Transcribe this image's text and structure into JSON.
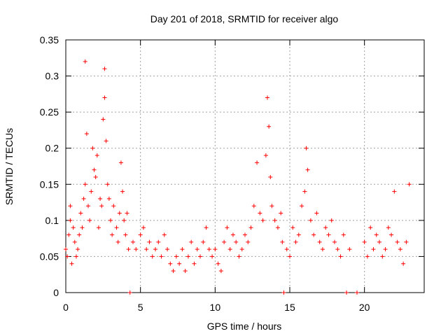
{
  "chart_data": {
    "type": "scatter",
    "title": "Day 201 of 2018, SRMTID for receiver algo",
    "xlabel": "GPS time / hours",
    "ylabel": "SRMTID / TECUs",
    "xlim": [
      0,
      24
    ],
    "ylim": [
      0,
      0.35
    ],
    "x_ticks": [
      0,
      5,
      10,
      15,
      20
    ],
    "x_tick_labels": [
      "0",
      "5",
      "10",
      "15",
      "20"
    ],
    "y_ticks": [
      0,
      0.05,
      0.1,
      0.15,
      0.2,
      0.25,
      0.3,
      0.35
    ],
    "y_tick_labels": [
      "0",
      "0.05",
      "0.1",
      "0.15",
      "0.2",
      "0.25",
      "0.3",
      "0.35"
    ],
    "grid": true,
    "marker": "plus",
    "colors": {
      "points": "#ff0000",
      "grid": "#a0a0a0",
      "axis": "#000000"
    },
    "series": [
      {
        "name": "SRMTID",
        "points": [
          [
            0.0,
            0.06
          ],
          [
            0.1,
            0.05
          ],
          [
            0.2,
            0.08
          ],
          [
            0.3,
            0.12
          ],
          [
            0.3,
            0.1
          ],
          [
            0.4,
            0.04
          ],
          [
            0.5,
            0.09
          ],
          [
            0.6,
            0.07
          ],
          [
            0.7,
            0.05
          ],
          [
            0.8,
            0.06
          ],
          [
            0.9,
            0.08
          ],
          [
            1.0,
            0.11
          ],
          [
            1.1,
            0.09
          ],
          [
            1.2,
            0.13
          ],
          [
            1.3,
            0.32
          ],
          [
            1.3,
            0.15
          ],
          [
            1.4,
            0.22
          ],
          [
            1.5,
            0.12
          ],
          [
            1.6,
            0.1
          ],
          [
            1.7,
            0.14
          ],
          [
            1.8,
            0.2
          ],
          [
            1.9,
            0.17
          ],
          [
            2.0,
            0.16
          ],
          [
            2.1,
            0.19
          ],
          [
            2.2,
            0.09
          ],
          [
            2.3,
            0.13
          ],
          [
            2.4,
            0.12
          ],
          [
            2.5,
            0.24
          ],
          [
            2.6,
            0.31
          ],
          [
            2.6,
            0.27
          ],
          [
            2.7,
            0.21
          ],
          [
            2.8,
            0.15
          ],
          [
            2.9,
            0.13
          ],
          [
            3.0,
            0.1
          ],
          [
            3.1,
            0.08
          ],
          [
            3.2,
            0.12
          ],
          [
            3.4,
            0.09
          ],
          [
            3.5,
            0.07
          ],
          [
            3.6,
            0.11
          ],
          [
            3.7,
            0.18
          ],
          [
            3.8,
            0.14
          ],
          [
            3.9,
            0.1
          ],
          [
            4.0,
            0.08
          ],
          [
            4.1,
            0.11
          ],
          [
            4.2,
            0.06
          ],
          [
            4.3,
            0.0
          ],
          [
            4.5,
            0.07
          ],
          [
            4.7,
            0.06
          ],
          [
            5.0,
            0.08
          ],
          [
            5.2,
            0.09
          ],
          [
            5.4,
            0.06
          ],
          [
            5.6,
            0.07
          ],
          [
            5.8,
            0.05
          ],
          [
            6.0,
            0.06
          ],
          [
            6.2,
            0.07
          ],
          [
            6.4,
            0.05
          ],
          [
            6.6,
            0.08
          ],
          [
            6.8,
            0.06
          ],
          [
            7.0,
            0.04
          ],
          [
            7.2,
            0.03
          ],
          [
            7.4,
            0.05
          ],
          [
            7.6,
            0.04
          ],
          [
            7.8,
            0.06
          ],
          [
            8.0,
            0.03
          ],
          [
            8.2,
            0.05
          ],
          [
            8.4,
            0.07
          ],
          [
            8.6,
            0.04
          ],
          [
            8.8,
            0.06
          ],
          [
            9.0,
            0.05
          ],
          [
            9.2,
            0.07
          ],
          [
            9.4,
            0.09
          ],
          [
            9.6,
            0.06
          ],
          [
            9.8,
            0.05
          ],
          [
            10.0,
            0.06
          ],
          [
            10.2,
            0.04
          ],
          [
            10.4,
            0.03
          ],
          [
            10.6,
            0.07
          ],
          [
            10.8,
            0.09
          ],
          [
            11.0,
            0.06
          ],
          [
            11.2,
            0.08
          ],
          [
            11.4,
            0.07
          ],
          [
            11.6,
            0.05
          ],
          [
            11.8,
            0.06
          ],
          [
            12.0,
            0.08
          ],
          [
            12.2,
            0.07
          ],
          [
            12.4,
            0.09
          ],
          [
            12.6,
            0.12
          ],
          [
            12.8,
            0.18
          ],
          [
            13.0,
            0.11
          ],
          [
            13.2,
            0.1
          ],
          [
            13.4,
            0.19
          ],
          [
            13.5,
            0.27
          ],
          [
            13.6,
            0.23
          ],
          [
            13.7,
            0.16
          ],
          [
            13.8,
            0.12
          ],
          [
            14.0,
            0.1
          ],
          [
            14.2,
            0.09
          ],
          [
            14.4,
            0.11
          ],
          [
            14.5,
            0.07
          ],
          [
            14.6,
            0.0
          ],
          [
            14.8,
            0.06
          ],
          [
            15.0,
            0.05
          ],
          [
            15.2,
            0.09
          ],
          [
            15.4,
            0.07
          ],
          [
            15.6,
            0.08
          ],
          [
            15.8,
            0.12
          ],
          [
            16.0,
            0.14
          ],
          [
            16.1,
            0.2
          ],
          [
            16.2,
            0.17
          ],
          [
            16.4,
            0.1
          ],
          [
            16.6,
            0.08
          ],
          [
            16.8,
            0.11
          ],
          [
            17.0,
            0.07
          ],
          [
            17.2,
            0.06
          ],
          [
            17.4,
            0.09
          ],
          [
            17.6,
            0.08
          ],
          [
            17.8,
            0.1
          ],
          [
            18.0,
            0.07
          ],
          [
            18.2,
            0.06
          ],
          [
            18.4,
            0.05
          ],
          [
            18.6,
            0.08
          ],
          [
            18.8,
            0.0
          ],
          [
            19.0,
            0.06
          ],
          [
            19.5,
            0.0
          ],
          [
            20.0,
            0.07
          ],
          [
            20.2,
            0.05
          ],
          [
            20.4,
            0.09
          ],
          [
            20.6,
            0.06
          ],
          [
            20.8,
            0.08
          ],
          [
            21.0,
            0.07
          ],
          [
            21.2,
            0.05
          ],
          [
            21.4,
            0.06
          ],
          [
            21.6,
            0.09
          ],
          [
            21.8,
            0.08
          ],
          [
            22.0,
            0.14
          ],
          [
            22.2,
            0.07
          ],
          [
            22.4,
            0.06
          ],
          [
            22.6,
            0.04
          ],
          [
            22.8,
            0.07
          ],
          [
            23.0,
            0.15
          ]
        ]
      }
    ]
  }
}
